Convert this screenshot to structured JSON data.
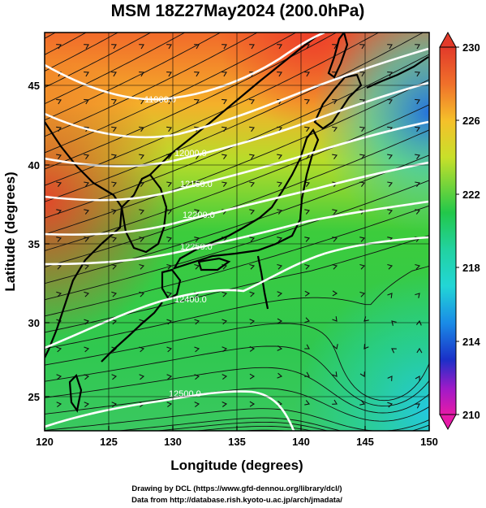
{
  "title": "MSM 18Z27May2024 (200.0hPa)",
  "xlabel": "Longitude (degrees)",
  "ylabel": "Latitude  (degrees)",
  "credit_line1": "Drawing by DCL (https://www.gfd-dennou.org/library/dcl/)",
  "credit_line2": "Data from http://database.rish.kyoto-u.ac.jp/arch/jmadata/",
  "x_ticks": [
    "120",
    "125",
    "130",
    "135",
    "140",
    "145",
    "150"
  ],
  "y_ticks": [
    "25",
    "30",
    "35",
    "40",
    "45"
  ],
  "colorbar": {
    "labels": [
      "230",
      "226",
      "222",
      "218",
      "214",
      "210"
    ],
    "min": 210,
    "max": 230
  },
  "contour_labels": [
    "11900.0",
    "12000.0",
    "12150.0",
    "12200.0",
    "12250.0",
    "12300.0",
    "12400.0",
    "12500.0"
  ],
  "map_extent": {
    "lon": [
      120,
      150
    ],
    "lat": [
      22.5,
      48
    ]
  },
  "colors": {
    "warm": "#e8402a",
    "mid": "#22c84a",
    "cool": "#1aa8e6",
    "contour": "#ffffff",
    "streamline": "#111111"
  }
}
